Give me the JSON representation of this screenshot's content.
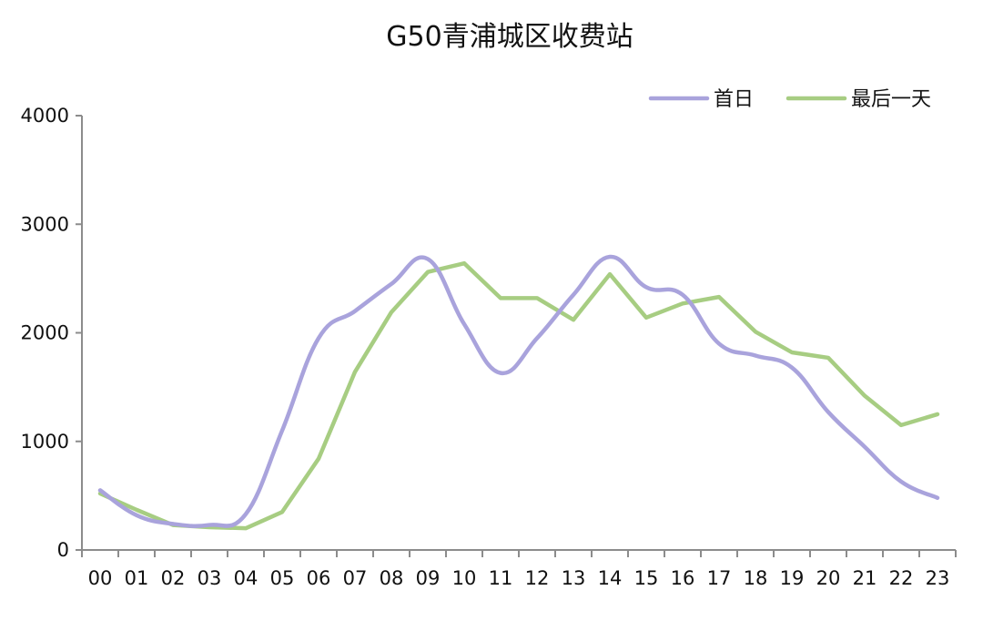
{
  "chart_data": {
    "type": "line",
    "title": "G50青浦城区收费站",
    "xlabel": "",
    "ylabel": "",
    "categories": [
      "00",
      "01",
      "02",
      "03",
      "04",
      "05",
      "06",
      "07",
      "08",
      "09",
      "10",
      "11",
      "12",
      "13",
      "14",
      "15",
      "16",
      "17",
      "18",
      "19",
      "20",
      "21",
      "22",
      "23"
    ],
    "ylim": [
      0,
      4000
    ],
    "yticks": [
      0,
      1000,
      2000,
      3000,
      4000
    ],
    "grid": false,
    "legend_position": "top-right",
    "series": [
      {
        "name": "首日",
        "color": "#a9a3dc",
        "smooth": true,
        "values": [
          550,
          320,
          240,
          230,
          330,
          1100,
          1950,
          2200,
          2450,
          2680,
          2080,
          1630,
          1950,
          2350,
          2700,
          2420,
          2350,
          1900,
          1790,
          1680,
          1270,
          950,
          630,
          480
        ]
      },
      {
        "name": "最后一天",
        "color": "#a7cd82",
        "smooth": false,
        "values": [
          520,
          370,
          230,
          210,
          200,
          350,
          840,
          1640,
          2190,
          2560,
          2640,
          2320,
          2320,
          2120,
          2540,
          2140,
          2270,
          2330,
          2010,
          1820,
          1770,
          1420,
          1150,
          1250
        ]
      }
    ]
  }
}
